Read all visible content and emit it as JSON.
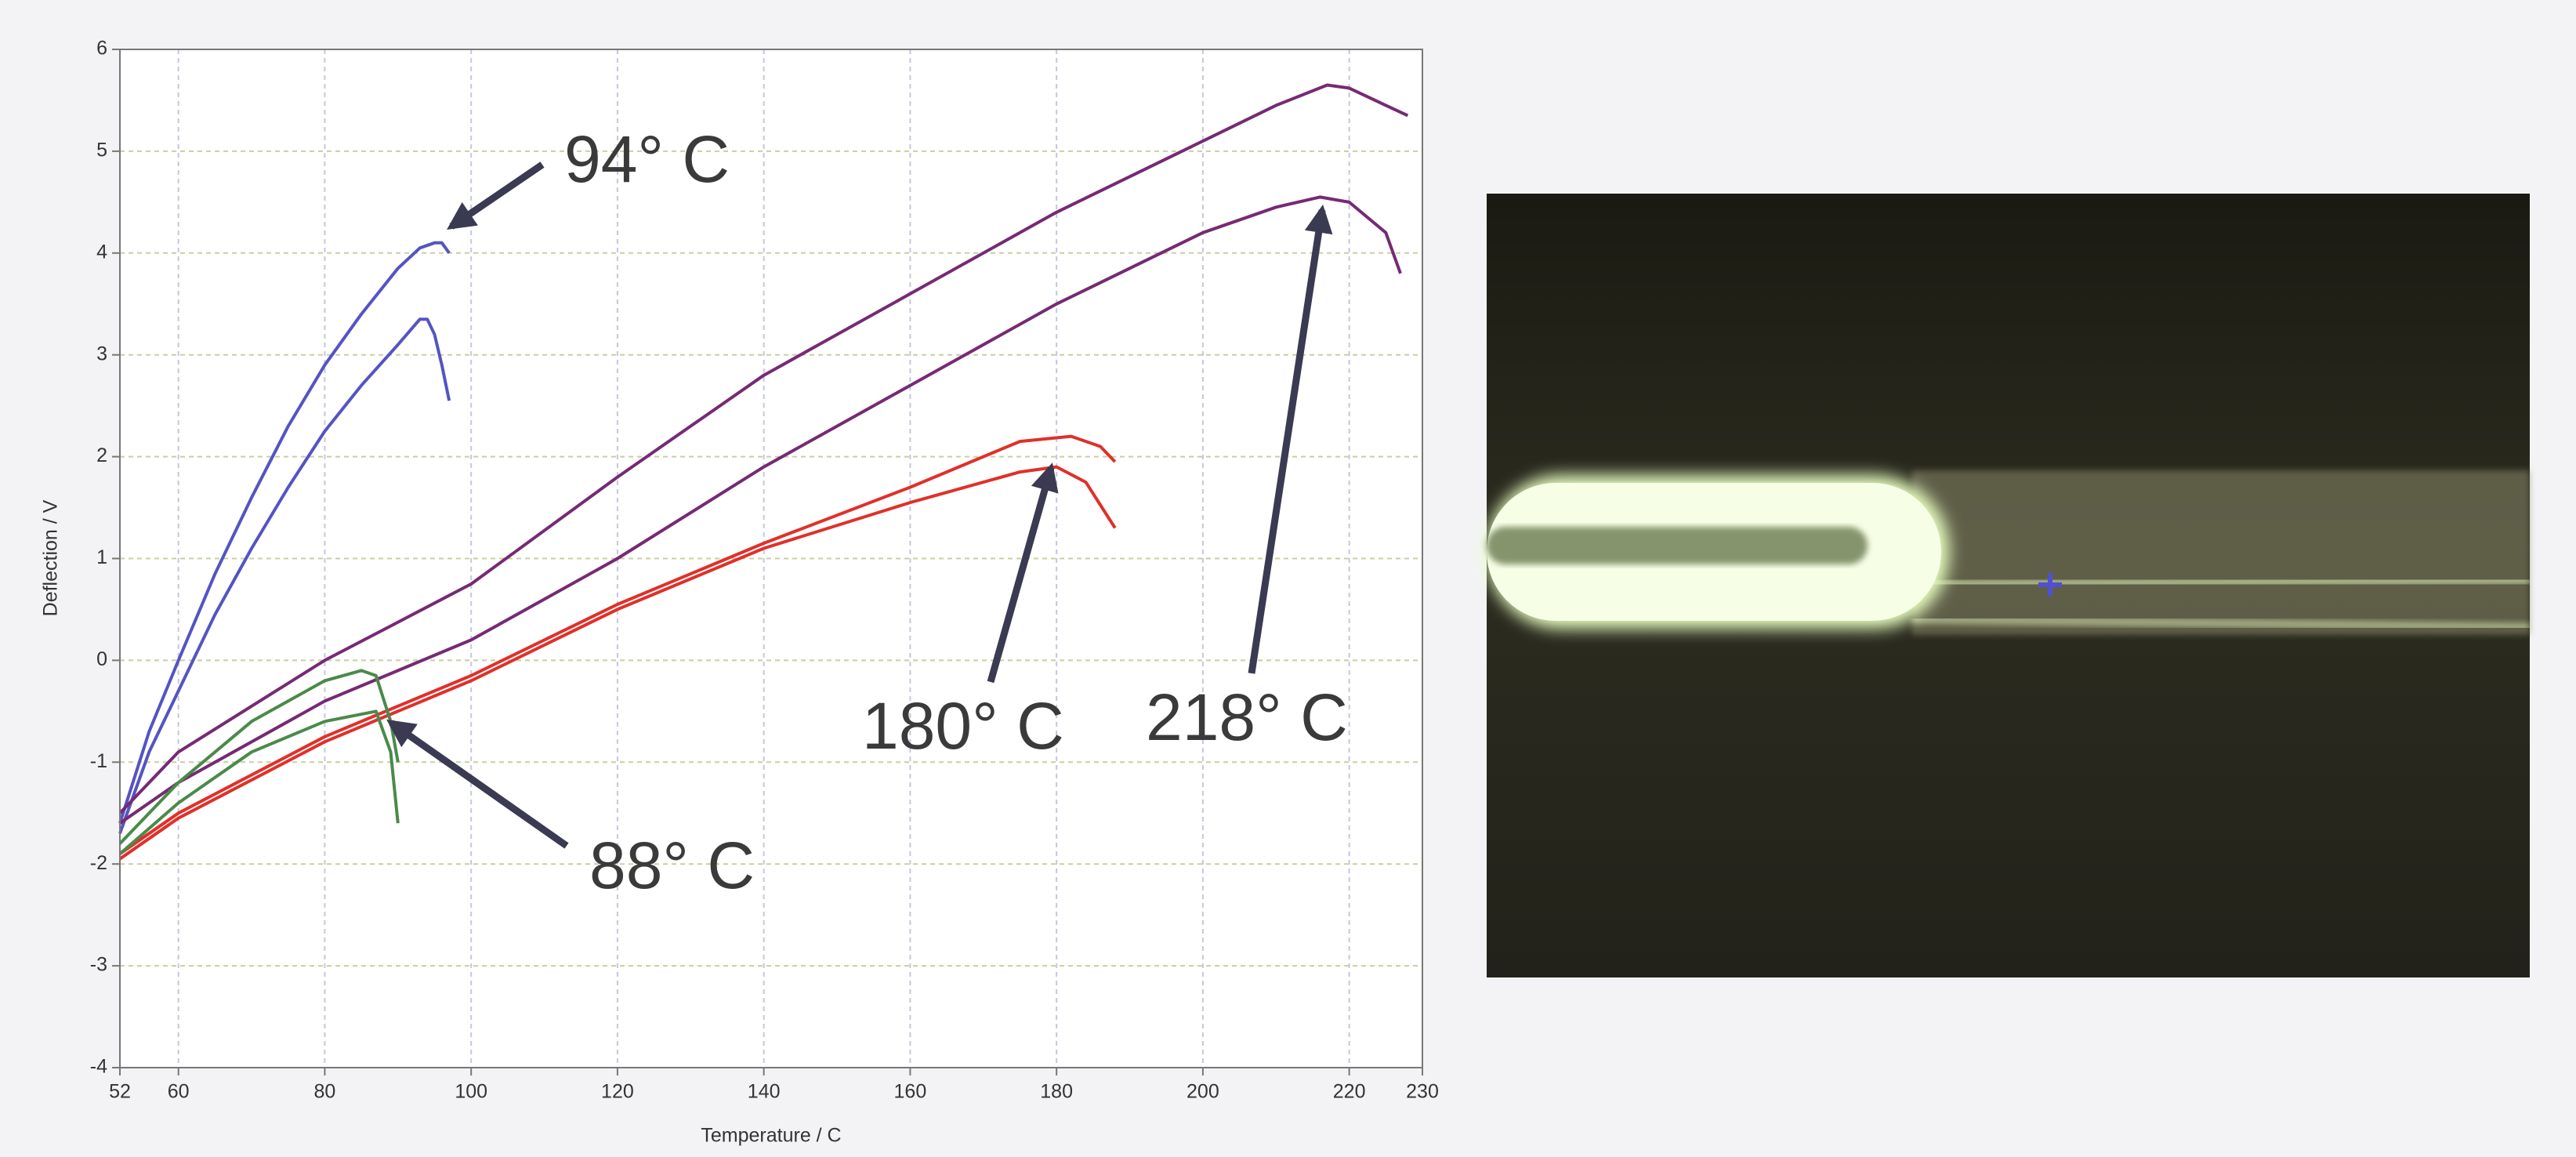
{
  "chart_data": {
    "type": "line",
    "xlabel": "Temperature / C",
    "ylabel": "Deflection / V",
    "xlim": [
      52,
      230
    ],
    "ylim": [
      -4,
      6
    ],
    "xticks": [
      52,
      60,
      80,
      100,
      120,
      140,
      160,
      180,
      200,
      220,
      230
    ],
    "yticks": [
      -4,
      -3,
      -2,
      -1,
      0,
      1,
      2,
      3,
      4,
      5,
      6
    ],
    "grid": true,
    "annotations": [
      "94° C",
      "88° C",
      "180° C",
      "218° C"
    ],
    "series": [
      {
        "color": "#5454c4",
        "x": [
          52,
          56,
          60,
          65,
          70,
          75,
          80,
          85,
          90,
          93,
          95,
          96,
          97
        ],
        "values": [
          -1.6,
          -0.7,
          0.0,
          0.85,
          1.6,
          2.3,
          2.9,
          3.4,
          3.85,
          4.05,
          4.1,
          4.1,
          4.0
        ]
      },
      {
        "color": "#5454c4",
        "x": [
          52,
          56,
          60,
          65,
          70,
          75,
          80,
          85,
          90,
          93,
          94,
          95,
          96,
          97
        ],
        "values": [
          -1.7,
          -0.9,
          -0.3,
          0.45,
          1.1,
          1.7,
          2.25,
          2.7,
          3.1,
          3.35,
          3.35,
          3.2,
          2.9,
          2.55
        ]
      },
      {
        "color": "#762a74",
        "x": [
          52,
          60,
          80,
          100,
          120,
          140,
          160,
          180,
          200,
          210,
          217,
          220,
          225,
          228
        ],
        "values": [
          -1.5,
          -0.9,
          0.0,
          0.75,
          1.8,
          2.8,
          3.6,
          4.4,
          5.1,
          5.45,
          5.65,
          5.62,
          5.45,
          5.35
        ]
      },
      {
        "color": "#762a74",
        "x": [
          52,
          60,
          80,
          100,
          120,
          140,
          160,
          180,
          200,
          210,
          216,
          220,
          225,
          227
        ],
        "values": [
          -1.6,
          -1.2,
          -0.4,
          0.2,
          1.0,
          1.9,
          2.7,
          3.5,
          4.2,
          4.45,
          4.55,
          4.5,
          4.2,
          3.8
        ]
      },
      {
        "color": "#e0302a",
        "x": [
          52,
          60,
          80,
          100,
          120,
          140,
          160,
          175,
          182,
          186,
          188
        ],
        "values": [
          -1.9,
          -1.5,
          -0.75,
          -0.15,
          0.55,
          1.15,
          1.7,
          2.15,
          2.2,
          2.1,
          1.95
        ]
      },
      {
        "color": "#e0302a",
        "x": [
          52,
          60,
          80,
          100,
          120,
          140,
          160,
          175,
          180,
          184,
          188
        ],
        "values": [
          -1.95,
          -1.55,
          -0.8,
          -0.2,
          0.5,
          1.1,
          1.55,
          1.85,
          1.9,
          1.75,
          1.3
        ]
      },
      {
        "color": "#4a8a4a",
        "x": [
          52,
          60,
          70,
          80,
          85,
          87,
          89,
          90
        ],
        "values": [
          -1.8,
          -1.2,
          -0.6,
          -0.2,
          -0.1,
          -0.15,
          -0.6,
          -1.0
        ]
      },
      {
        "color": "#4a8a4a",
        "x": [
          52,
          60,
          70,
          80,
          87,
          89,
          90
        ],
        "values": [
          -1.9,
          -1.4,
          -0.9,
          -0.6,
          -0.5,
          -0.9,
          -1.6
        ]
      }
    ]
  }
}
